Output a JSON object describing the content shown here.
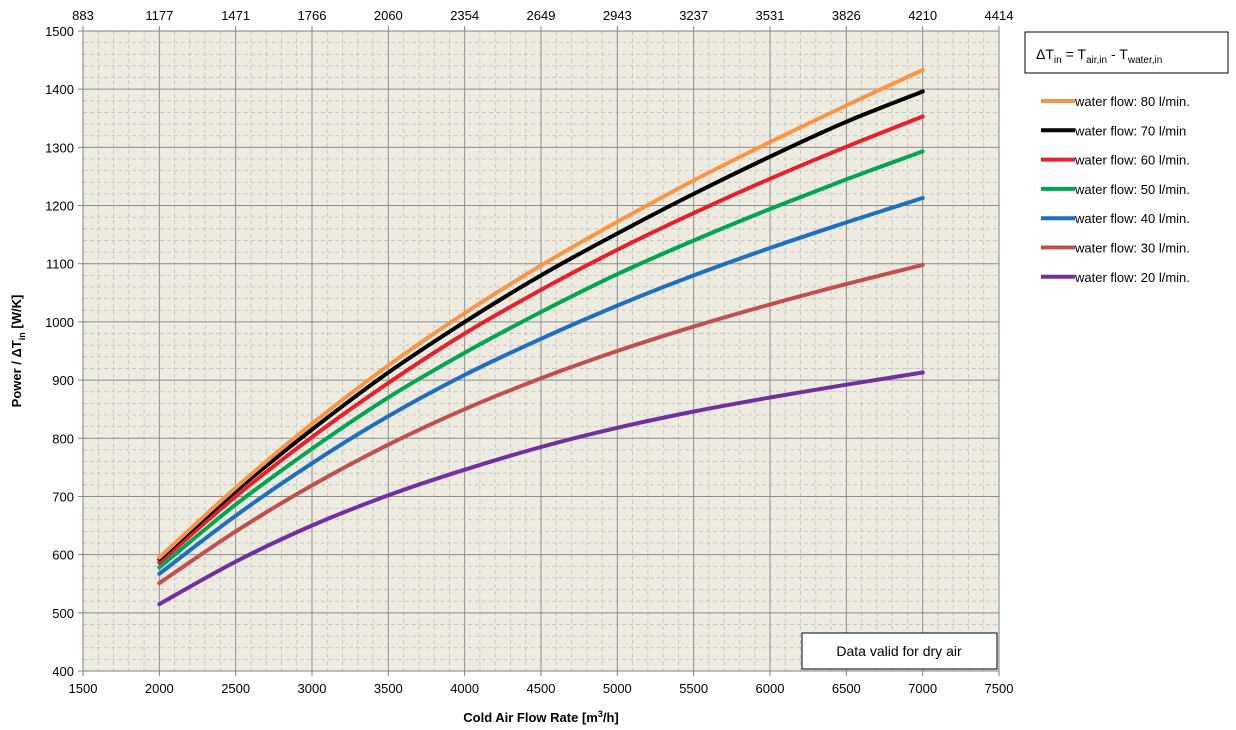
{
  "chart_data": {
    "type": "line",
    "xlabel": "Cold Air Flow Rate [m³/h]",
    "xlabel_parts": {
      "pre": "Cold Air Flow Rate [m",
      "sup": "3",
      "post": "/h]"
    },
    "ylabel_parts": {
      "pre": "Power / ΔT",
      "sub": "in",
      "post": " [W/K]"
    },
    "xlim": [
      1500,
      7500
    ],
    "ylim": [
      400,
      1500
    ],
    "x_ticks": [
      1500,
      2000,
      2500,
      3000,
      3500,
      4000,
      4500,
      5000,
      5500,
      6000,
      6500,
      7000,
      7500
    ],
    "y_ticks": [
      400,
      500,
      600,
      700,
      800,
      900,
      1000,
      1100,
      1200,
      1300,
      1400,
      1500
    ],
    "top_axis_ticks": [
      "883",
      "1177",
      "1471",
      "1766",
      "2060",
      "2354",
      "2649",
      "2943",
      "3237",
      "3531",
      "3826",
      "4210",
      "4414"
    ],
    "grid": true,
    "legend_position": "right",
    "formula": {
      "lhs": "ΔT",
      "lhs_sub": "in",
      "eq": " = T",
      "a_sub": "air,in",
      "minus": " - T",
      "b_sub": "water,in"
    },
    "note": "Data valid for dry air",
    "x": [
      2000,
      2500,
      3000,
      3500,
      4000,
      4500,
      5000,
      5500,
      6000,
      6500,
      7000
    ],
    "series": [
      {
        "name": "water flow: 80 l/min.",
        "color": "#F79646",
        "values": [
          595,
          715,
          825,
          925,
          1015,
          1097,
          1172,
          1243,
          1309,
          1372,
          1433
        ]
      },
      {
        "name": "water flow: 70 l/min",
        "color": "#000000",
        "values": [
          592,
          709,
          815,
          913,
          1000,
          1080,
          1152,
          1220,
          1284,
          1344,
          1396
        ]
      },
      {
        "name": "water flow: 60 l/min.",
        "color": "#E8202A",
        "values": [
          586,
          700,
          802,
          895,
          980,
          1055,
          1124,
          1187,
          1246,
          1301,
          1353
        ]
      },
      {
        "name": "water flow: 50 l/min.",
        "color": "#00A651",
        "values": [
          578,
          686,
          782,
          870,
          947,
          1017,
          1082,
          1140,
          1194,
          1245,
          1293
        ]
      },
      {
        "name": "water flow: 40 l/min.",
        "color": "#1F6FC0",
        "values": [
          567,
          667,
          757,
          838,
          909,
          971,
          1028,
          1080,
          1127,
          1171,
          1213
        ]
      },
      {
        "name": "water flow: 30 l/min.",
        "color": "#C0504D",
        "values": [
          551,
          640,
          719,
          789,
          850,
          903,
          950,
          992,
          1030,
          1065,
          1098
        ]
      },
      {
        "name": "water flow: 20 l/min.",
        "color": "#7030A0",
        "values": [
          515,
          588,
          650,
          702,
          746,
          785,
          818,
          846,
          870,
          892,
          913
        ]
      }
    ]
  }
}
